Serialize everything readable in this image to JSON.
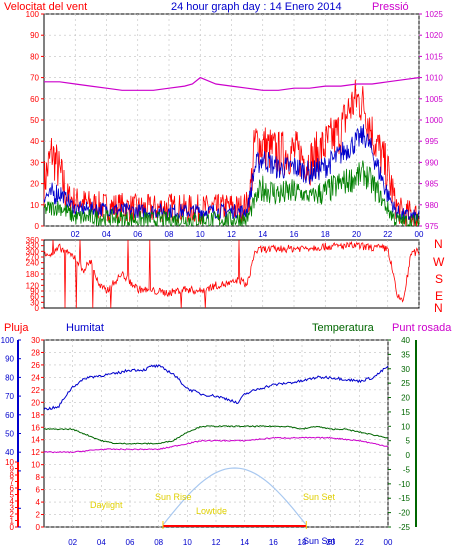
{
  "colors": {
    "wind": "#ff0000",
    "gust_dir": "#ff0000",
    "direction": "#ff0000",
    "avgwind": "#0000cc",
    "minwind": "#008000",
    "pressure": "#cc00cc",
    "humidity": "#0000cc",
    "temperature": "#006600",
    "dewpoint": "#cc00cc",
    "sun": "#a8c8f0",
    "labels_yellow": "#e0d000",
    "axis_blue": "#0000cc",
    "axis_green": "#006600",
    "rain_axis": "#ff0000",
    "frame": "#000000",
    "grid": "#c0c0c0"
  },
  "header": {
    "left_label": "Velocitat del vent",
    "title": "24 hour graph day : 14 Enero 2014",
    "right_label": "Pressió"
  },
  "panel2": {
    "compass_letters": [
      "N",
      "W",
      "S",
      "E",
      "N"
    ]
  },
  "panel3": {
    "rain_label": "Pluja",
    "humidity_label": "Humitat",
    "temperature_label": "Temperatura",
    "dewpoint_label": "Punt rosada",
    "sun_labels": {
      "daylight": "Daylight",
      "sunrise": "Sun Rise",
      "lowtide": "Lowtide",
      "sunset": "Sun Set",
      "sun_bottom": "Sun Set"
    }
  },
  "x_ticks": [
    "02",
    "04",
    "06",
    "08",
    "10",
    "12",
    "14",
    "16",
    "18",
    "20",
    "22",
    "00"
  ],
  "chart_data": [
    {
      "type": "line",
      "title": "24 hour graph day : 14 Enero 2014",
      "x_hours": [
        0,
        24
      ],
      "left_axis": {
        "label": "Velocitat del vent",
        "ylim": [
          0,
          100
        ],
        "ticks": [
          0,
          10,
          20,
          30,
          40,
          50,
          60,
          70,
          80,
          90,
          100
        ]
      },
      "right_axis": {
        "label": "Pressió",
        "ylim": [
          975,
          1025
        ],
        "ticks": [
          975,
          980,
          985,
          990,
          995,
          1000,
          1005,
          1010,
          1015,
          1020,
          1025
        ]
      },
      "series": [
        {
          "name": "gust",
          "axis": "left",
          "x": [
            0,
            0.5,
            1,
            1.5,
            2,
            3,
            4,
            5,
            6,
            7,
            8,
            9,
            10,
            11,
            12,
            12.5,
            13,
            13.2,
            13.5,
            14,
            15,
            16,
            17,
            18,
            19,
            19.5,
            20,
            20.5,
            21,
            22,
            22.5,
            23,
            23.5,
            24
          ],
          "y": [
            20,
            35,
            25,
            14,
            12,
            10,
            9,
            9,
            8,
            8,
            9,
            8,
            8,
            8,
            9,
            8,
            10,
            15,
            40,
            38,
            34,
            35,
            30,
            38,
            45,
            55,
            60,
            57,
            44,
            25,
            10,
            5,
            6,
            4
          ]
        },
        {
          "name": "average",
          "axis": "left",
          "x": [
            0,
            1,
            2,
            3,
            4,
            6,
            8,
            10,
            12,
            13,
            13.5,
            14,
            15,
            16,
            17,
            18,
            19,
            20,
            20.5,
            21,
            22,
            22.5,
            23,
            24
          ],
          "y": [
            14,
            16,
            8,
            8,
            8,
            7,
            7,
            7,
            7,
            7,
            28,
            32,
            27,
            28,
            25,
            28,
            34,
            40,
            43,
            35,
            15,
            7,
            5,
            4
          ]
        },
        {
          "name": "minimum",
          "axis": "left",
          "x": [
            0,
            1,
            2,
            3,
            4,
            6,
            8,
            10,
            12,
            13,
            13.5,
            14,
            15,
            16,
            17,
            18,
            19,
            20,
            20.5,
            21,
            22,
            22.5,
            23,
            24
          ],
          "y": [
            8,
            9,
            4,
            4,
            4,
            3,
            3,
            3,
            3,
            3,
            12,
            18,
            15,
            16,
            14,
            16,
            20,
            23,
            25,
            20,
            8,
            3,
            2,
            2
          ]
        },
        {
          "name": "pressure",
          "axis": "right",
          "x": [
            0,
            1,
            2,
            3,
            4,
            5,
            6,
            7,
            8,
            9,
            9.5,
            10,
            11,
            12,
            13,
            14,
            15,
            16,
            17,
            18,
            19,
            20,
            21,
            22,
            23,
            24
          ],
          "y": [
            1009,
            1009,
            1008.5,
            1008,
            1007.5,
            1007,
            1007,
            1007,
            1007.5,
            1008,
            1008.5,
            1010,
            1008.5,
            1008,
            1007.5,
            1007,
            1007,
            1007.5,
            1007.5,
            1008,
            1008,
            1008.5,
            1008.5,
            1009,
            1009.5,
            1010
          ]
        }
      ]
    },
    {
      "type": "line",
      "title": "",
      "left_axis": {
        "label": "",
        "ylim": [
          0,
          360
        ],
        "ticks": [
          0,
          30,
          60,
          90,
          120,
          150,
          180,
          210,
          240,
          270,
          300,
          330,
          360
        ]
      },
      "series": [
        {
          "name": "",
          "axis": "left",
          "x": [
            0,
            0.5,
            1,
            1.5,
            2,
            2.5,
            3,
            3.5,
            4,
            5,
            6,
            7,
            8,
            9,
            10,
            11,
            12,
            12.5,
            13,
            13.5,
            14,
            16,
            18,
            20,
            21,
            22,
            22.3,
            22.6,
            23,
            23.5,
            24
          ],
          "y": [
            300,
            280,
            320,
            290,
            270,
            200,
            250,
            120,
            90,
            180,
            100,
            90,
            80,
            100,
            90,
            120,
            130,
            150,
            120,
            300,
            310,
            315,
            325,
            330,
            320,
            315,
            200,
            60,
            40,
            290,
            300
          ]
        }
      ]
    },
    {
      "type": "line",
      "title": "",
      "axes": {
        "rain": {
          "label": "Pluja",
          "ylim": [
            0,
            10
          ],
          "ticks": [
            0,
            1,
            2,
            3,
            4,
            5,
            6,
            7,
            8,
            9,
            10
          ]
        },
        "humidity": {
          "label": "Humitat",
          "ylim": [
            0,
            100
          ],
          "ticks": [
            0,
            10,
            20,
            30,
            40,
            50,
            60,
            70,
            80,
            90,
            100
          ]
        },
        "temperature_scale": {
          "ylim": [
            0,
            30
          ],
          "ticks": [
            0,
            2,
            4,
            6,
            8,
            10,
            12,
            14,
            16,
            18,
            20,
            22,
            24,
            26,
            28,
            30
          ]
        },
        "right": {
          "label": "Temperatura",
          "ylim": [
            -25,
            40
          ],
          "ticks": [
            -25,
            -20,
            -15,
            -10,
            -5,
            0,
            5,
            10,
            15,
            20,
            25,
            30,
            35,
            40
          ]
        }
      },
      "series": [
        {
          "name": "Humitat",
          "axis": "humidity",
          "x": [
            0,
            1,
            1.5,
            2,
            3,
            4,
            5,
            6,
            7,
            7.5,
            8,
            9,
            10,
            11,
            12,
            13,
            13.5,
            14,
            15,
            16,
            17,
            18,
            19,
            20,
            21,
            22,
            23,
            24
          ],
          "y": [
            63,
            64,
            70,
            75,
            80,
            81,
            82,
            84,
            84,
            86,
            86,
            82,
            74,
            71,
            70,
            68,
            66,
            71,
            74,
            76,
            77,
            78,
            80,
            80,
            79,
            78,
            80,
            86
          ]
        },
        {
          "name": "Temperatura",
          "axis": "right",
          "x": [
            0,
            1,
            2,
            3,
            4,
            5,
            6,
            7,
            8,
            9,
            10,
            11,
            12,
            13,
            14,
            15,
            16,
            17,
            18,
            19,
            20,
            21,
            22,
            23,
            24
          ],
          "y": [
            9,
            9,
            9,
            7,
            5,
            4,
            4,
            4,
            4,
            5,
            8,
            10,
            10,
            10,
            10,
            10,
            10,
            10,
            9,
            10,
            9,
            9,
            8,
            7,
            6
          ]
        },
        {
          "name": "Punt rosada",
          "axis": "right",
          "x": [
            0,
            2,
            4,
            6,
            8,
            9,
            10,
            11,
            12,
            13,
            14,
            16,
            18,
            20,
            22,
            23,
            24
          ],
          "y": [
            1,
            1,
            2,
            2,
            2,
            3,
            4,
            5,
            5,
            5,
            5,
            6,
            6,
            6,
            5,
            4,
            3
          ]
        },
        {
          "name": "Sun",
          "axis": "none",
          "x": [
            8.3,
            13.3,
            18.3
          ],
          "y": [
            0,
            1,
            0
          ]
        }
      ],
      "annotations": [
        "Daylight",
        "Sun Rise",
        "Lowtide",
        "Sun Set"
      ]
    }
  ]
}
